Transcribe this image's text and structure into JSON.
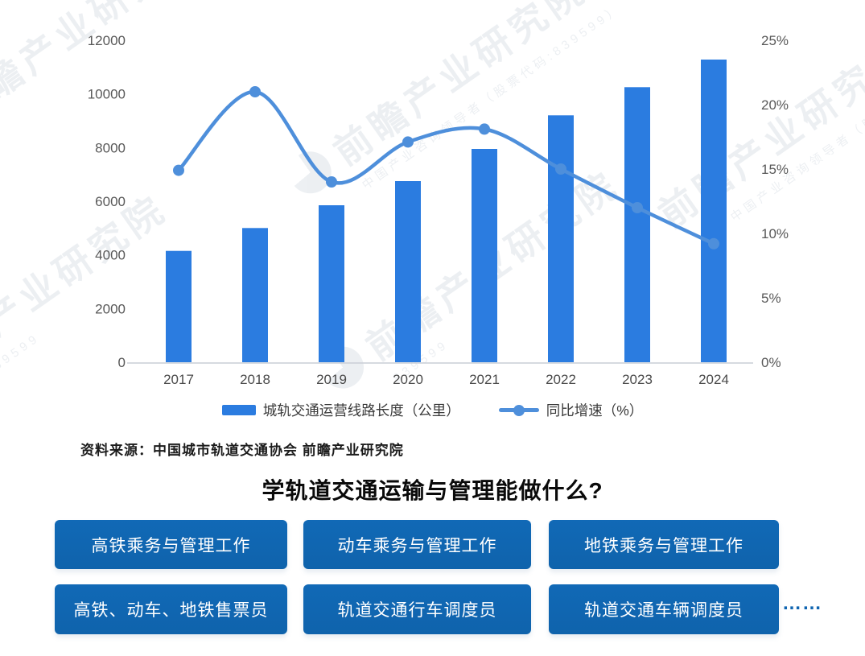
{
  "watermark": {
    "brand": "前瞻产业研究院",
    "tagline": "中国产业咨询领导者（股票代码:839599）",
    "code": "839599"
  },
  "chart_data": {
    "type": "bar+line",
    "categories": [
      "2017",
      "2018",
      "2019",
      "2020",
      "2021",
      "2022",
      "2023",
      "2024"
    ],
    "series": [
      {
        "name": "城轨交通运营线路长度（公里）",
        "type": "bar",
        "axis": "left",
        "color": "#2b7ce0",
        "values": [
          4150,
          5000,
          5850,
          6750,
          7950,
          9200,
          10250,
          11280
        ]
      },
      {
        "name": "同比增速（%）",
        "type": "line",
        "axis": "right",
        "color": "#4e8fdb",
        "values": [
          14.9,
          21.0,
          14.0,
          17.1,
          18.1,
          15.0,
          12.0,
          9.2
        ]
      }
    ],
    "left_axis": {
      "min": 0,
      "max": 12000,
      "ticks": [
        0,
        2000,
        4000,
        6000,
        8000,
        10000,
        12000
      ]
    },
    "right_axis": {
      "min": 0,
      "max": 25,
      "ticks": [
        "0%",
        "5%",
        "10%",
        "15%",
        "20%",
        "25%"
      ]
    },
    "grid": false,
    "legend_position": "bottom",
    "title": ""
  },
  "source": {
    "text": "资料来源：中国城市轨道交通协会 前瞻产业研究院"
  },
  "section": {
    "title": "学轨道交通运输与管理能做什么?"
  },
  "jobs": {
    "items": [
      "高铁乘务与管理工作",
      "动车乘务与管理工作",
      "地铁乘务与管理工作",
      "高铁、动车、地铁售票员",
      "轨道交通行车调度员",
      "轨道交通车辆调度员"
    ],
    "more": "……"
  },
  "colors": {
    "bar": "#2b7ce0",
    "line": "#4e8fdb",
    "button": "#1065b1",
    "axis_text": "#595959"
  }
}
